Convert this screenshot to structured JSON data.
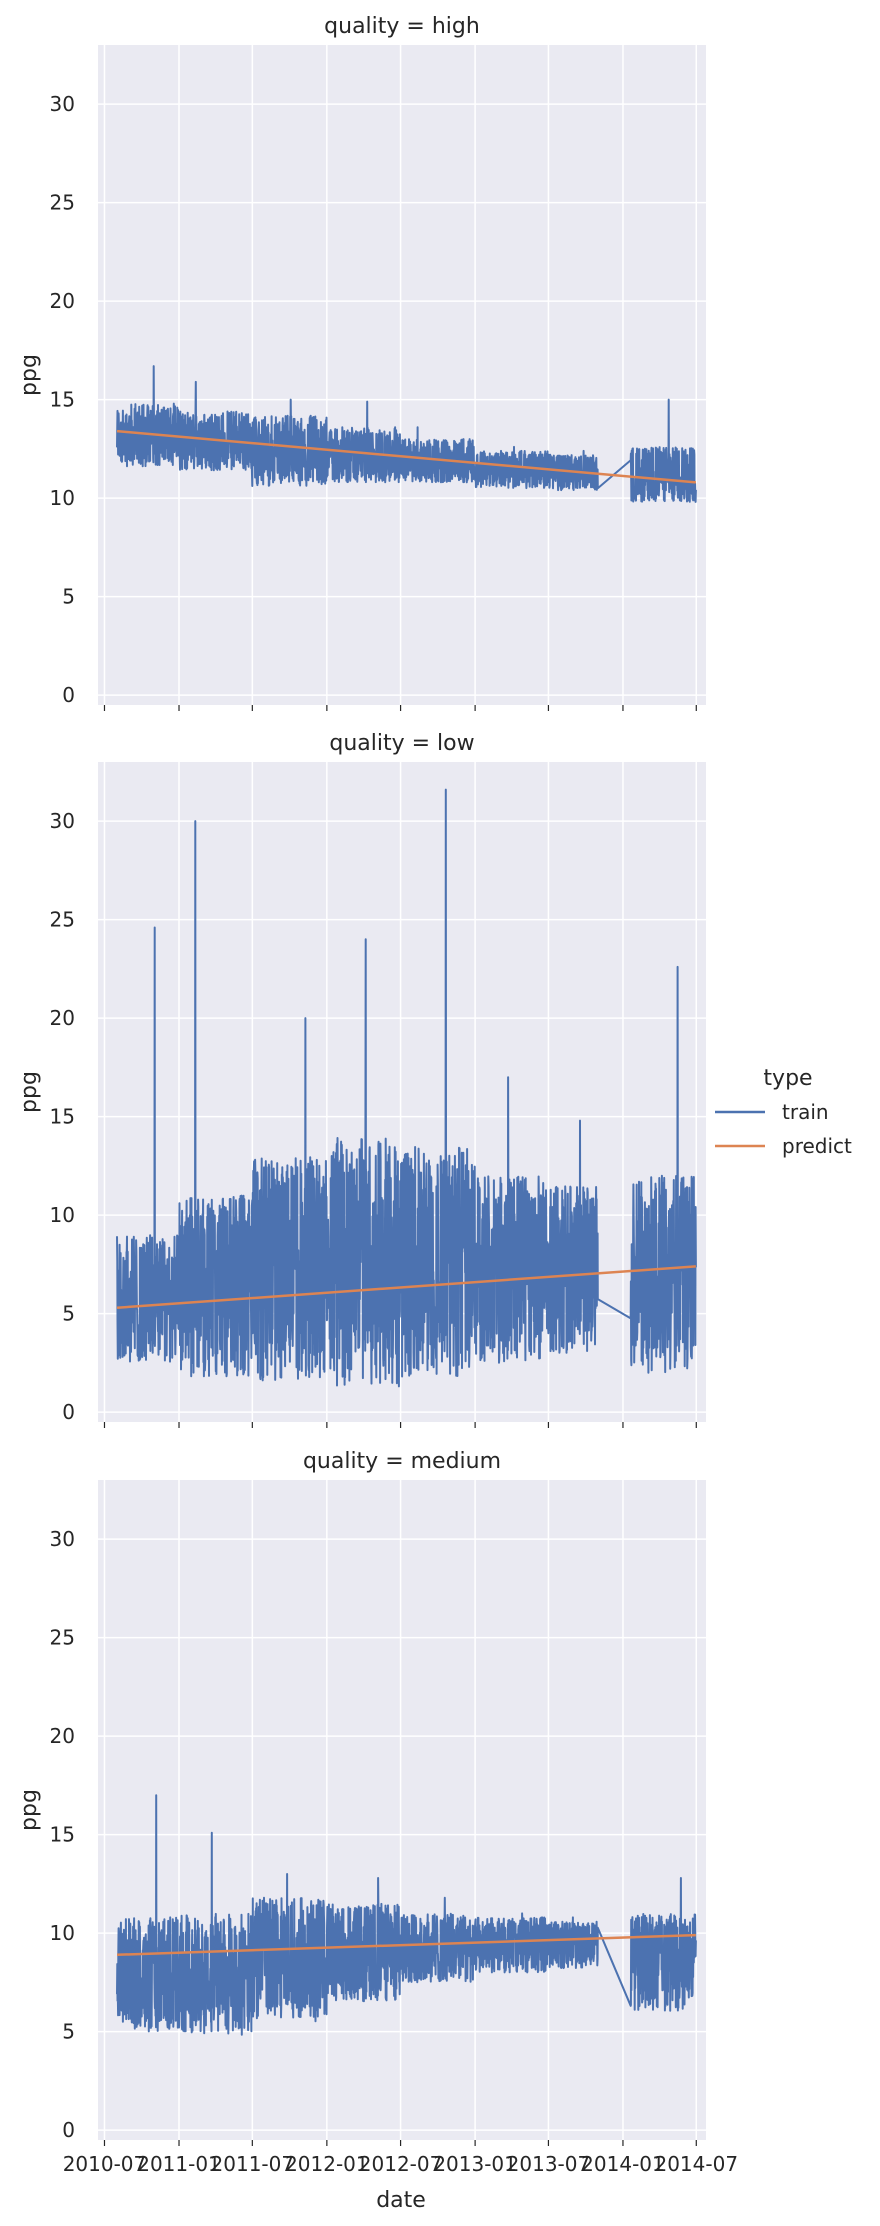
{
  "chart_data": {
    "type": "line",
    "facet_by": "quality",
    "x_label": "date",
    "y_label": "ppg",
    "x_ticks": [
      "2010-07",
      "2011-01",
      "2011-07",
      "2012-01",
      "2012-07",
      "2013-01",
      "2013-07",
      "2014-01",
      "2014-07"
    ],
    "y_ticks": [
      0,
      5,
      10,
      15,
      20,
      25,
      30
    ],
    "ylim": [
      -0.5,
      33
    ],
    "xlim": [
      "2010-06-15",
      "2014-07-25"
    ],
    "grid": true,
    "legend": {
      "title": "type",
      "position": "right",
      "entries": [
        {
          "label": "train",
          "color": "#4c72b0"
        },
        {
          "label": "predict",
          "color": "#dd8452"
        }
      ]
    },
    "panels": [
      {
        "title": "quality = high",
        "train_ranges": [
          {
            "start": "2010-08-01",
            "end": "2010-12-31",
            "low": 11.6,
            "high": 14.8,
            "spike": 16.7
          },
          {
            "start": "2011-01-01",
            "end": "2011-06-30",
            "low": 11.4,
            "high": 14.4,
            "spike": 15.9
          },
          {
            "start": "2011-07-01",
            "end": "2011-12-31",
            "low": 10.6,
            "high": 14.2,
            "spike": 15.0
          },
          {
            "start": "2012-01-01",
            "end": "2012-06-30",
            "low": 10.8,
            "high": 13.6,
            "spike": 14.9
          },
          {
            "start": "2012-07-01",
            "end": "2012-12-31",
            "low": 10.8,
            "high": 13.0,
            "spike": 13.6
          },
          {
            "start": "2013-01-01",
            "end": "2013-06-30",
            "low": 10.5,
            "high": 12.4,
            "spike": 12.6
          },
          {
            "start": "2013-07-01",
            "end": "2013-10-31",
            "low": 10.4,
            "high": 12.2,
            "spike": 12.4
          },
          {
            "start": "2014-01-20",
            "end": "2014-06-30",
            "low": 9.8,
            "high": 12.6,
            "spike": 15.0
          }
        ],
        "predict": [
          {
            "date": "2010-08-01",
            "value": 13.4
          },
          {
            "date": "2014-06-30",
            "value": 10.8
          }
        ]
      },
      {
        "title": "quality = low",
        "train_ranges": [
          {
            "start": "2010-08-01",
            "end": "2010-12-31",
            "low": 2.5,
            "high": 9.0,
            "spike": 24.6
          },
          {
            "start": "2011-01-01",
            "end": "2011-06-30",
            "low": 1.8,
            "high": 11.0,
            "spike": 30.0
          },
          {
            "start": "2011-07-01",
            "end": "2011-12-31",
            "low": 1.5,
            "high": 13.0,
            "spike": 20.0
          },
          {
            "start": "2012-01-01",
            "end": "2012-06-30",
            "low": 1.2,
            "high": 14.0,
            "spike": 24.0
          },
          {
            "start": "2012-07-01",
            "end": "2012-12-31",
            "low": 1.8,
            "high": 13.5,
            "spike": 31.6
          },
          {
            "start": "2013-01-01",
            "end": "2013-06-30",
            "low": 2.5,
            "high": 12.0,
            "spike": 17.0
          },
          {
            "start": "2013-07-01",
            "end": "2013-10-31",
            "low": 3.0,
            "high": 11.5,
            "spike": 14.8
          },
          {
            "start": "2014-01-20",
            "end": "2014-06-30",
            "low": 2.0,
            "high": 12.0,
            "spike": 22.6
          }
        ],
        "predict": [
          {
            "date": "2010-08-01",
            "value": 5.3
          },
          {
            "date": "2014-06-30",
            "value": 7.4
          }
        ]
      },
      {
        "title": "quality = medium",
        "train_ranges": [
          {
            "start": "2010-08-01",
            "end": "2010-12-31",
            "low": 5.0,
            "high": 10.8,
            "spike": 17.0
          },
          {
            "start": "2011-01-01",
            "end": "2011-06-30",
            "low": 4.8,
            "high": 11.0,
            "spike": 15.1
          },
          {
            "start": "2011-07-01",
            "end": "2011-12-31",
            "low": 5.5,
            "high": 11.8,
            "spike": 13.0
          },
          {
            "start": "2012-01-01",
            "end": "2012-06-30",
            "low": 6.5,
            "high": 11.5,
            "spike": 12.8
          },
          {
            "start": "2012-07-01",
            "end": "2012-12-31",
            "low": 7.5,
            "high": 11.0,
            "spike": 11.8
          },
          {
            "start": "2013-01-01",
            "end": "2013-06-30",
            "low": 8.0,
            "high": 10.8,
            "spike": 11.0
          },
          {
            "start": "2013-07-01",
            "end": "2013-10-31",
            "low": 8.2,
            "high": 10.6,
            "spike": 10.8
          },
          {
            "start": "2014-01-20",
            "end": "2014-06-30",
            "low": 6.0,
            "high": 11.0,
            "spike": 12.8
          }
        ],
        "predict": [
          {
            "date": "2010-08-01",
            "value": 8.9
          },
          {
            "date": "2014-06-30",
            "value": 9.9
          }
        ]
      }
    ]
  }
}
